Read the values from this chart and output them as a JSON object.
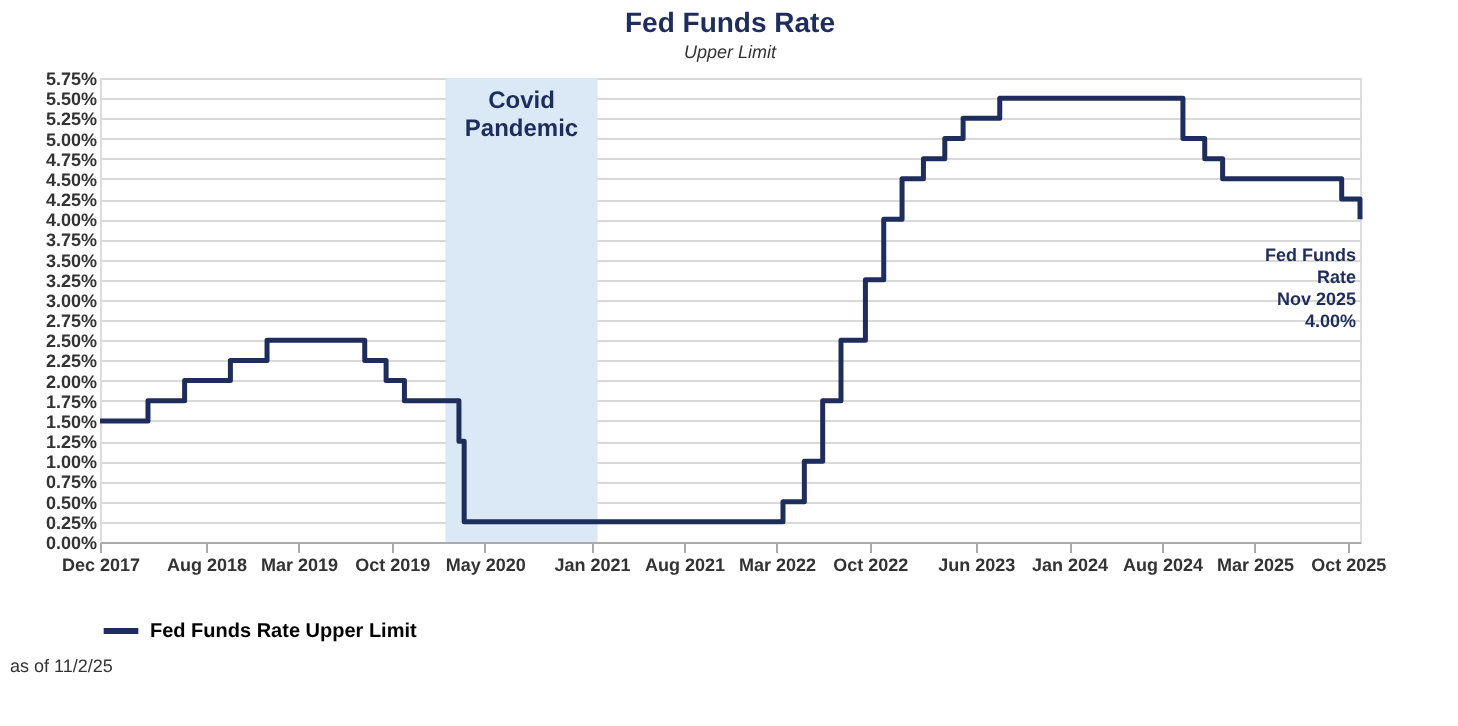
{
  "chart_data": {
    "type": "step",
    "title": "Fed Funds Rate",
    "subtitle": "Upper Limit",
    "x": [
      "2017-12-01",
      "2018-03-21",
      "2018-06-13",
      "2018-09-26",
      "2018-12-19",
      "2019-07-31",
      "2019-09-18",
      "2019-10-30",
      "2020-03-03",
      "2020-03-15",
      "2022-03-16",
      "2022-05-04",
      "2022-06-15",
      "2022-07-27",
      "2022-09-21",
      "2022-11-02",
      "2022-12-14",
      "2023-02-01",
      "2023-03-22",
      "2023-05-03",
      "2023-07-26",
      "2024-09-18",
      "2024-11-07",
      "2024-12-18",
      "2025-09-17",
      "2025-10-29"
    ],
    "series": [
      {
        "name": "Fed Funds Rate Upper Limit",
        "color": "#1f2d5c",
        "values": [
          1.5,
          1.75,
          2.0,
          2.25,
          2.5,
          2.25,
          2.0,
          1.75,
          1.25,
          0.25,
          0.5,
          1.0,
          1.75,
          2.5,
          3.25,
          4.0,
          4.5,
          4.75,
          5.0,
          5.25,
          5.5,
          5.0,
          4.75,
          4.5,
          4.25,
          4.0
        ]
      }
    ],
    "xlim": [
      "2017-12-01",
      "2025-10-29"
    ],
    "xticks": [
      {
        "value": "2017-12",
        "label": "Dec 2017"
      },
      {
        "value": "2018-08",
        "label": "Aug 2018"
      },
      {
        "value": "2019-03",
        "label": "Mar 2019"
      },
      {
        "value": "2019-10",
        "label": "Oct 2019"
      },
      {
        "value": "2020-05",
        "label": "May 2020"
      },
      {
        "value": "2021-01",
        "label": "Jan 2021"
      },
      {
        "value": "2021-08",
        "label": "Aug 2021"
      },
      {
        "value": "2022-03",
        "label": "Mar 2022"
      },
      {
        "value": "2022-10",
        "label": "Oct 2022"
      },
      {
        "value": "2023-06",
        "label": "Jun 2023"
      },
      {
        "value": "2024-01",
        "label": "Jan 2024"
      },
      {
        "value": "2024-08",
        "label": "Aug 2024"
      },
      {
        "value": "2025-03",
        "label": "Mar 2025"
      },
      {
        "value": "2025-10",
        "label": "Oct 2025"
      }
    ],
    "ylim": [
      0,
      5.75
    ],
    "yticks": [
      {
        "value": 0,
        "label": "0.00%"
      },
      {
        "value": 0.25,
        "label": "0.25%"
      },
      {
        "value": 0.5,
        "label": "0.50%"
      },
      {
        "value": 0.75,
        "label": "0.75%"
      },
      {
        "value": 1,
        "label": "1.00%"
      },
      {
        "value": 1.25,
        "label": "1.25%"
      },
      {
        "value": 1.5,
        "label": "1.50%"
      },
      {
        "value": 1.75,
        "label": "1.75%"
      },
      {
        "value": 2,
        "label": "2.00%"
      },
      {
        "value": 2.25,
        "label": "2.25%"
      },
      {
        "value": 2.5,
        "label": "2.50%"
      },
      {
        "value": 2.75,
        "label": "2.75%"
      },
      {
        "value": 3,
        "label": "3.00%"
      },
      {
        "value": 3.25,
        "label": "3.25%"
      },
      {
        "value": 3.5,
        "label": "3.50%"
      },
      {
        "value": 3.75,
        "label": "3.75%"
      },
      {
        "value": 4,
        "label": "4.00%"
      },
      {
        "value": 4.25,
        "label": "4.25%"
      },
      {
        "value": 4.5,
        "label": "4.50%"
      },
      {
        "value": 4.75,
        "label": "4.75%"
      },
      {
        "value": 5,
        "label": "5.00%"
      },
      {
        "value": 5.25,
        "label": "5.25%"
      },
      {
        "value": 5.5,
        "label": "5.50%"
      },
      {
        "value": 5.75,
        "label": "5.75%"
      }
    ],
    "bands": [
      {
        "axis": "x",
        "from": "2020-02-01",
        "to": "2021-01-15",
        "label": "Covid\nPandemic",
        "color": "#dbe9f6"
      }
    ],
    "annotations": [
      {
        "text": "Fed Funds\nRate\nNov 2025\n4.00%",
        "x": "2025-10-29",
        "y": 4.0
      },
      "as of 11/2/25"
    ],
    "grid": "y",
    "legend": "bottom",
    "line_style": "solid"
  }
}
